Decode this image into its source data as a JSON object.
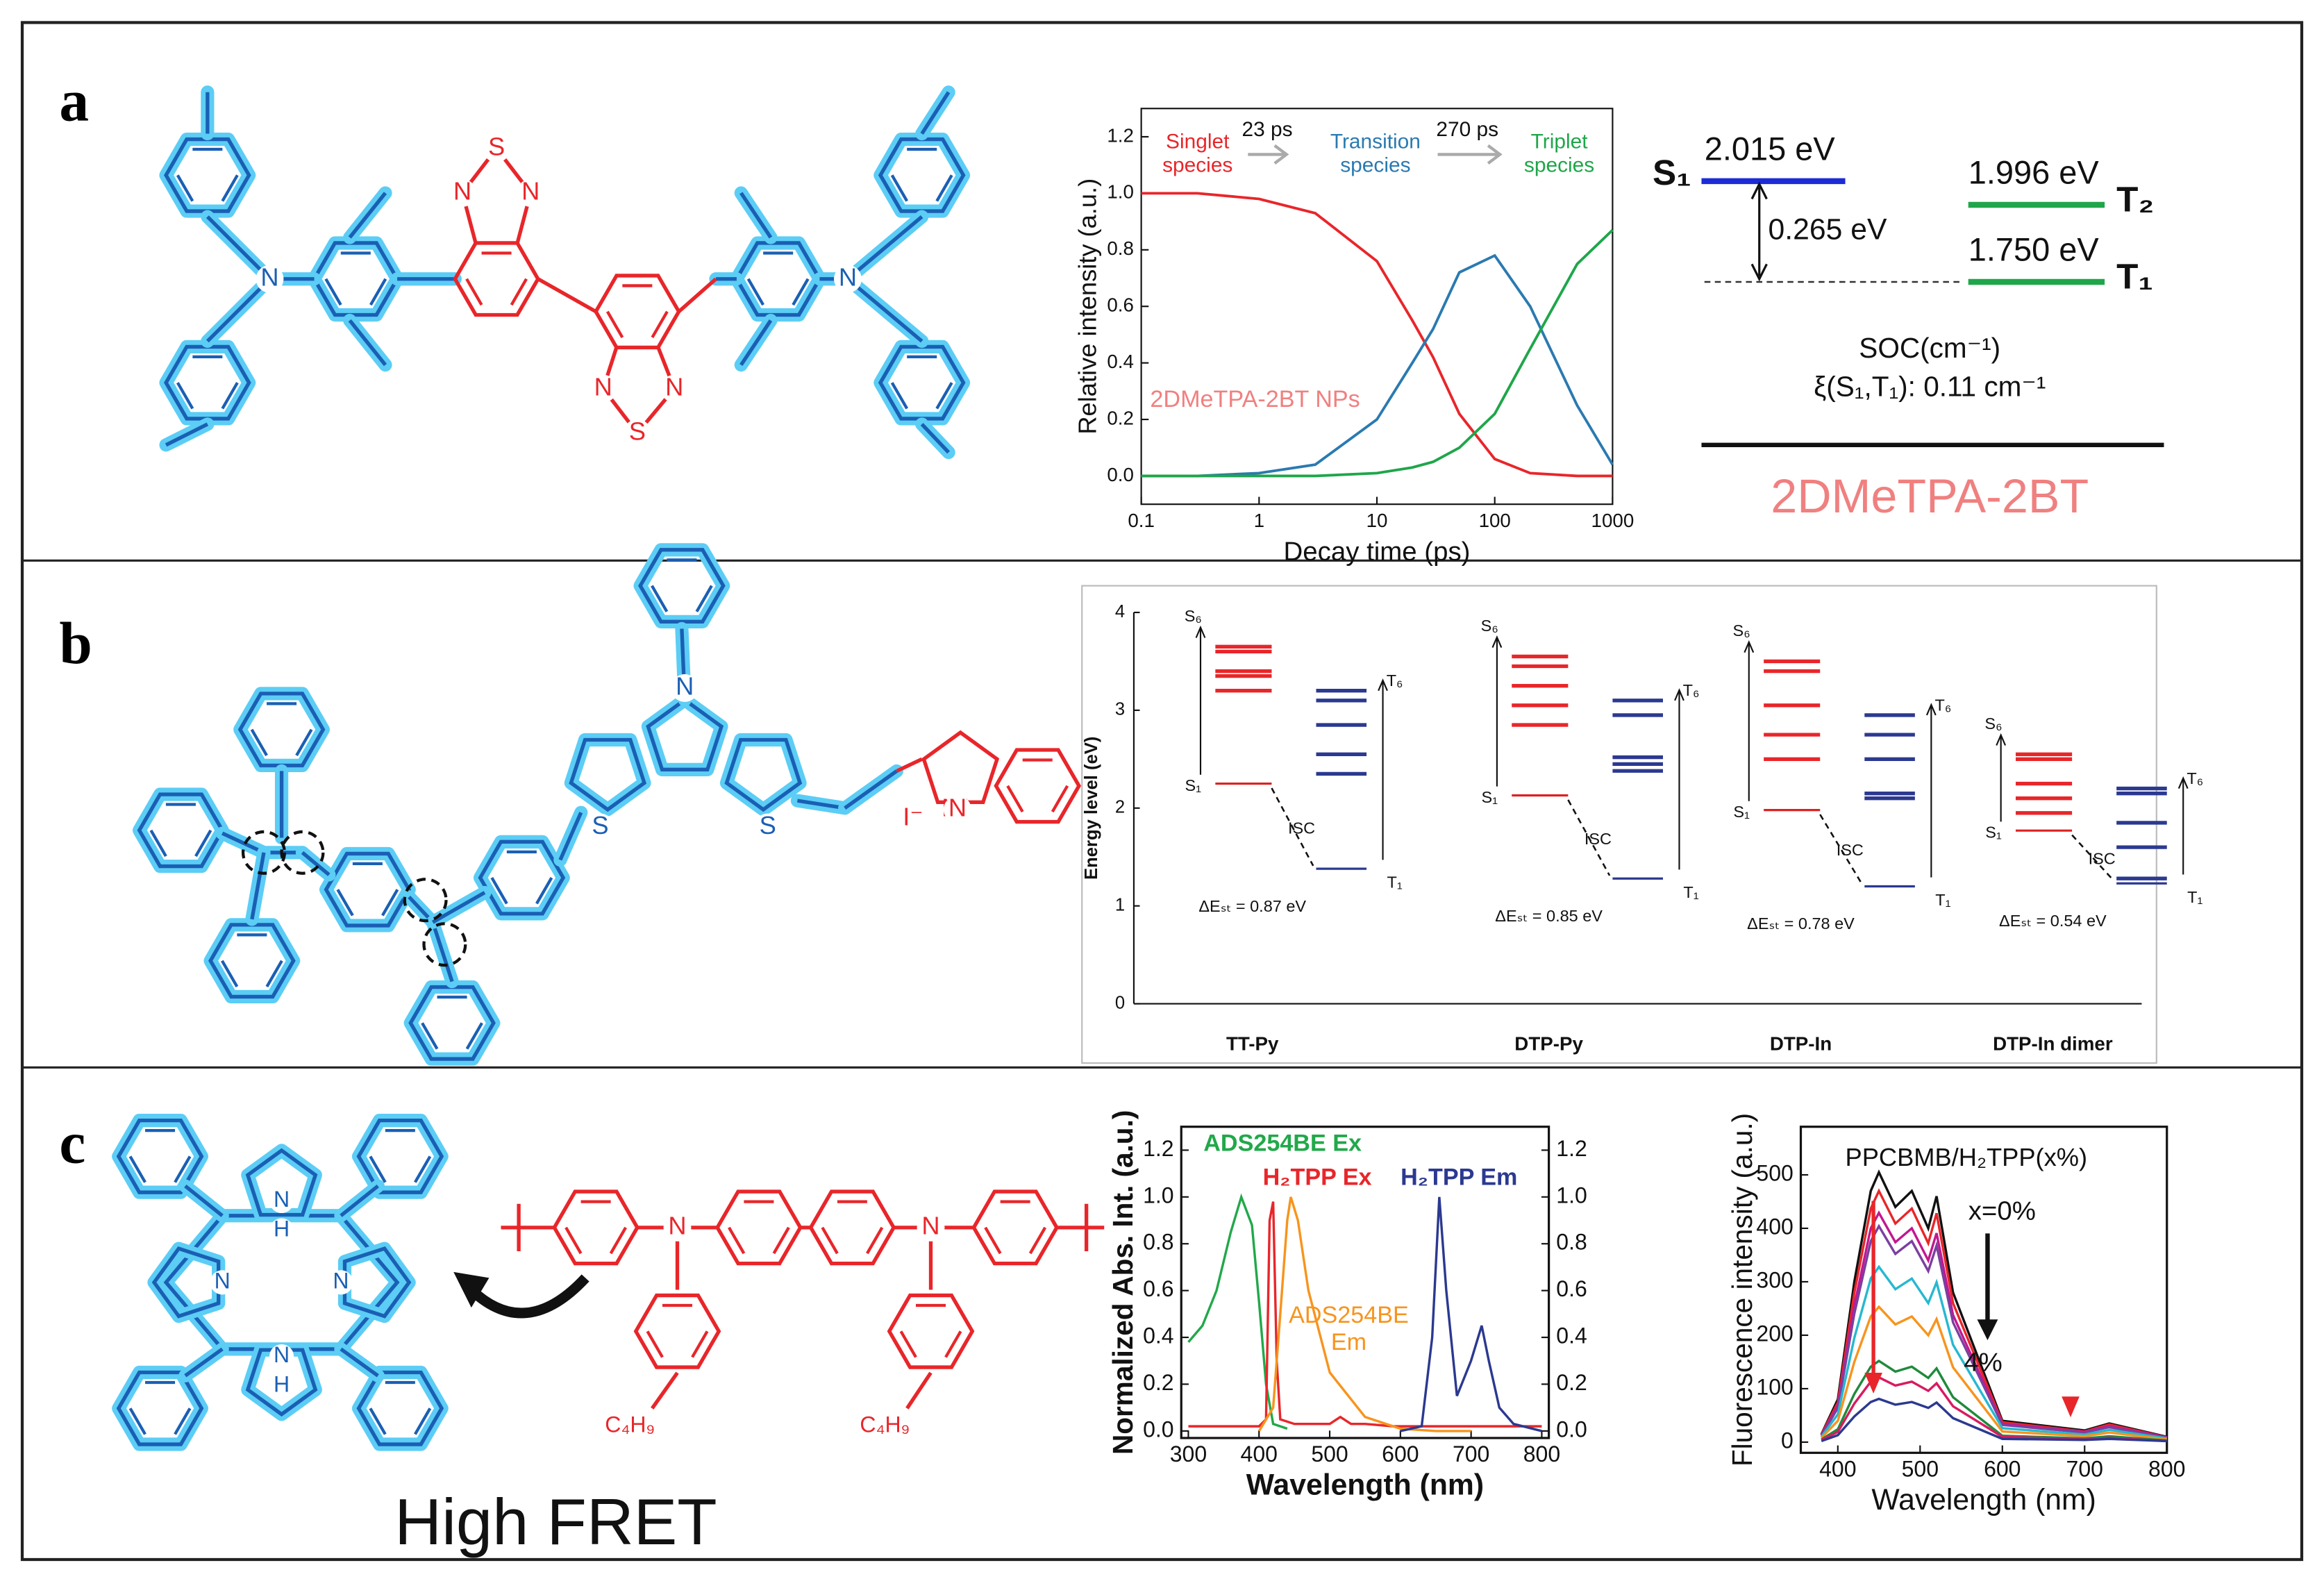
{
  "panel_labels": [
    "a",
    "b",
    "c"
  ],
  "panel_a": {
    "molecule_atoms": [
      "S",
      "N",
      "N",
      "N",
      "N",
      "S",
      "N",
      "N"
    ],
    "energy_diagram": {
      "s1_label": "S₁",
      "s1_energy": "2.015 eV",
      "gap": "0.265 eV",
      "t2_energy": "1.996 eV",
      "t2_label": "T₂",
      "t1_energy": "1.750 eV",
      "t1_label": "T₁",
      "soc_title": "SOC(cm⁻¹)",
      "soc_value": "ξ(S₁,T₁): 0.11 cm⁻¹",
      "name": "2DMeTPA-2BT"
    }
  },
  "panel_b": {
    "molecule_atoms": [
      "N",
      "S",
      "S",
      "N",
      "I⁻",
      "N⁺"
    ]
  },
  "panel_c": {
    "porphyrin_atoms": [
      "N",
      "H",
      "N",
      "N",
      "N",
      "H"
    ],
    "polymer_atoms": [
      "N",
      "N",
      "C₄H₉",
      "C₄H₉"
    ],
    "caption": "High FRET"
  },
  "chart_data": [
    {
      "type": "line",
      "log_x": true,
      "xlabel": "Decay time (ps)",
      "ylabel": "Relative intensity (a.u.)",
      "xlim": [
        0.1,
        1000
      ],
      "xticks": [
        0.1,
        1,
        10,
        100,
        1000
      ],
      "ylim": [
        -0.1,
        1.3
      ],
      "yticks": [
        {
          "value": 0,
          "label": "0.0"
        },
        {
          "value": 0.2,
          "label": "0.2"
        },
        {
          "value": 0.4,
          "label": "0.4"
        },
        {
          "value": 0.6,
          "label": "0.6"
        },
        {
          "value": 0.8,
          "label": "0.8"
        },
        {
          "value": 1.0,
          "label": "1.0"
        },
        {
          "value": 1.2,
          "label": "1.2"
        }
      ],
      "x": [
        0.1,
        0.3,
        1,
        3,
        10,
        20,
        30,
        50,
        100,
        200,
        500,
        1000
      ],
      "series": [
        {
          "name": "Singlet species",
          "color": "#e8262a",
          "values": [
            1.0,
            1.0,
            0.98,
            0.93,
            0.76,
            0.55,
            0.42,
            0.22,
            0.06,
            0.01,
            0,
            0
          ]
        },
        {
          "name": "Transition species",
          "color": "#2a7ab0",
          "values": [
            0,
            0,
            0.01,
            0.04,
            0.2,
            0.4,
            0.52,
            0.72,
            0.78,
            0.6,
            0.25,
            0.04
          ]
        },
        {
          "name": "Triplet species",
          "color": "#1fa64a",
          "values": [
            0,
            0,
            0,
            0,
            0.01,
            0.03,
            0.05,
            0.1,
            0.22,
            0.45,
            0.75,
            0.87
          ]
        }
      ],
      "annotations": [
        "23 ps",
        "270 ps",
        "2DMeTPA-2BT NPs"
      ]
    },
    {
      "type": "energy_levels",
      "ylabel": "Energy level (eV)",
      "ylim": [
        0,
        4
      ],
      "yticks": [
        0,
        1,
        2,
        3,
        4
      ],
      "categories": [
        "TT-Py",
        "DTP-Py",
        "DTP-In",
        "DTP-In dimer"
      ],
      "singlet_levels": [
        [
          2.25,
          3.2,
          3.35,
          3.4,
          3.6,
          3.65
        ],
        [
          2.13,
          2.85,
          3.05,
          3.25,
          3.45,
          3.55
        ],
        [
          1.98,
          2.5,
          2.75,
          3.05,
          3.4,
          3.5
        ],
        [
          1.77,
          1.95,
          2.1,
          2.25,
          2.5,
          2.55
        ]
      ],
      "triplet_levels": [
        [
          1.38,
          2.35,
          2.55,
          2.85,
          3.1,
          3.2
        ],
        [
          1.28,
          2.38,
          2.45,
          2.52,
          2.95,
          3.1
        ],
        [
          1.2,
          2.1,
          2.15,
          2.5,
          2.75,
          2.95
        ],
        [
          1.23,
          1.28,
          1.6,
          1.85,
          2.15,
          2.2
        ]
      ],
      "state_labels": {
        "s1": "S₁",
        "s6": "S₆",
        "t1": "T₁",
        "t6": "T₆",
        "isc": "ISC"
      },
      "gap_labels": [
        "ΔEₛₜ = 0.87 eV",
        "ΔEₛₜ = 0.85 eV",
        "ΔEₛₜ = 0.78 eV",
        "ΔEₛₜ = 0.54 eV"
      ]
    },
    {
      "type": "line",
      "xlabel": "Wavelength (nm)",
      "ylabel": "Normalized Abs. Int. (a.u.)",
      "xlim": [
        290,
        810
      ],
      "xticks": [
        300,
        400,
        500,
        600,
        700,
        800
      ],
      "ylim": [
        -0.03,
        1.3
      ],
      "y2lim": [
        -0.03,
        1.3
      ],
      "yticks": [
        {
          "value": 0,
          "label": "0.0"
        },
        {
          "value": 0.2,
          "label": "0.2"
        },
        {
          "value": 0.4,
          "label": "0.4"
        },
        {
          "value": 0.6,
          "label": "0.6"
        },
        {
          "value": 0.8,
          "label": "0.8"
        },
        {
          "value": 1.0,
          "label": "1.0"
        },
        {
          "value": 1.2,
          "label": "1.2"
        }
      ],
      "y2ticks": [
        {
          "value": 0,
          "label": "0.0"
        },
        {
          "value": 0.2,
          "label": "0.2"
        },
        {
          "value": 0.4,
          "label": "0.4"
        },
        {
          "value": 0.6,
          "label": "0.6"
        },
        {
          "value": 0.8,
          "label": "0.8"
        },
        {
          "value": 1.0,
          "label": "1.0"
        },
        {
          "value": 1.2,
          "label": "1.2"
        }
      ],
      "series": [
        {
          "name": "ADS254BE Ex",
          "color": "#22a84a",
          "x": [
            300,
            320,
            340,
            360,
            375,
            390,
            400,
            410,
            420,
            440
          ],
          "values": [
            0.38,
            0.45,
            0.6,
            0.85,
            1.0,
            0.88,
            0.55,
            0.2,
            0.03,
            0.01
          ]
        },
        {
          "name": "H₂TPP Ex",
          "color": "#e8262a",
          "x": [
            300,
            400,
            410,
            415,
            420,
            425,
            430,
            450,
            500,
            515,
            530,
            550,
            590,
            650,
            700,
            800
          ],
          "values": [
            0.02,
            0.02,
            0.05,
            0.9,
            0.98,
            0.3,
            0.05,
            0.03,
            0.03,
            0.06,
            0.03,
            0.03,
            0.02,
            0.02,
            0.02,
            0.02
          ]
        },
        {
          "name": "ADS254BE Em",
          "color": "#f7941d",
          "x": [
            400,
            420,
            430,
            440,
            445,
            455,
            470,
            500,
            550,
            600,
            650,
            700
          ],
          "values": [
            0,
            0.1,
            0.5,
            0.9,
            1.0,
            0.9,
            0.6,
            0.25,
            0.06,
            0.01,
            0,
            0
          ]
        },
        {
          "name": "H₂TPP Em",
          "color": "#2b3990",
          "x": [
            600,
            630,
            645,
            655,
            665,
            680,
            700,
            715,
            725,
            740,
            760,
            800
          ],
          "values": [
            0,
            0.02,
            0.4,
            1.0,
            0.6,
            0.15,
            0.3,
            0.45,
            0.3,
            0.1,
            0.03,
            0
          ]
        }
      ]
    },
    {
      "type": "line",
      "xlabel": "Wavelength (nm)",
      "ylabel": "Fluorescence intensity (a.u.)",
      "xlim": [
        355,
        800
      ],
      "xticks": [
        400,
        500,
        600,
        700,
        800
      ],
      "ylim": [
        -20,
        590
      ],
      "yticks": [
        0,
        100,
        200,
        300,
        400,
        500
      ],
      "x": [
        380,
        400,
        420,
        440,
        450,
        470,
        490,
        510,
        520,
        540,
        600,
        700,
        730,
        800
      ],
      "series": [
        {
          "color": "#111111",
          "values": [
            15,
            80,
            300,
            470,
            505,
            440,
            470,
            400,
            460,
            280,
            40,
            22,
            35,
            10
          ]
        },
        {
          "color": "#e8262a",
          "values": [
            14,
            74,
            279,
            437,
            470,
            409,
            437,
            372,
            428,
            260,
            37,
            20,
            33,
            9
          ]
        },
        {
          "color": "#c2188f",
          "values": [
            13,
            68,
            255,
            400,
            429,
            374,
            400,
            340,
            391,
            238,
            34,
            19,
            30,
            9
          ]
        },
        {
          "color": "#7b3fa0",
          "values": [
            12,
            64,
            240,
            376,
            404,
            352,
            376,
            320,
            368,
            224,
            32,
            18,
            28,
            8
          ]
        },
        {
          "color": "#27b8d0",
          "values": [
            10,
            52,
            195,
            306,
            328,
            286,
            306,
            260,
            299,
            182,
            26,
            14,
            23,
            7
          ]
        },
        {
          "color": "#f7941d",
          "values": [
            8,
            40,
            150,
            235,
            253,
            220,
            235,
            200,
            230,
            140,
            20,
            11,
            18,
            5
          ]
        },
        {
          "color": "#1f8a3c",
          "values": [
            5,
            24,
            90,
            141,
            152,
            132,
            141,
            120,
            138,
            84,
            12,
            7,
            11,
            3
          ]
        },
        {
          "color": "#d81b60",
          "values": [
            4,
            19,
            72,
            113,
            121,
            106,
            113,
            96,
            110,
            67,
            10,
            5,
            8,
            2
          ]
        },
        {
          "color": "#2b3990",
          "values": [
            2,
            13,
            48,
            75,
            81,
            70,
            75,
            64,
            74,
            45,
            6,
            4,
            6,
            2
          ]
        }
      ],
      "annotations": [
        "PPCBMB/H₂TPP(x%)",
        "x=0%",
        "4%"
      ]
    }
  ]
}
